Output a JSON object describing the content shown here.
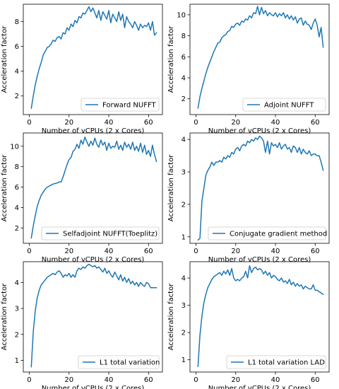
{
  "colors": {
    "line": "#1f77b4"
  },
  "chart_data": [
    {
      "type": "line",
      "xlabel": "Number of vCPUs (2 x Cores)",
      "ylabel": "Acceleration factor",
      "xlim": [
        -3,
        67
      ],
      "ylim": [
        0.5,
        9.4
      ],
      "xticks": [
        0,
        20,
        40,
        60
      ],
      "yticks": [
        2,
        4,
        6,
        8
      ],
      "legend_position": "bottom-right",
      "series": [
        {
          "name": "Forward NUFFT",
          "x": [
            1,
            2,
            3,
            4,
            5,
            6,
            7,
            8,
            9,
            10,
            11,
            12,
            13,
            14,
            15,
            16,
            17,
            18,
            19,
            20,
            21,
            22,
            23,
            24,
            25,
            26,
            27,
            28,
            29,
            30,
            31,
            32,
            33,
            34,
            35,
            36,
            37,
            38,
            39,
            40,
            41,
            42,
            43,
            44,
            45,
            46,
            47,
            48,
            49,
            50,
            51,
            52,
            53,
            54,
            55,
            56,
            57,
            58,
            59,
            60,
            61,
            62,
            63,
            64
          ],
          "values": [
            1.0,
            2.0,
            2.9,
            3.6,
            4.2,
            4.7,
            5.3,
            5.6,
            5.9,
            6.0,
            6.2,
            6.5,
            6.4,
            6.7,
            6.8,
            6.6,
            7.1,
            7.0,
            7.5,
            7.3,
            7.8,
            7.6,
            8.1,
            7.9,
            8.4,
            8.3,
            8.7,
            8.6,
            8.9,
            9.2,
            8.8,
            9.1,
            8.7,
            8.3,
            8.9,
            8.1,
            8.8,
            8.5,
            8.2,
            8.9,
            7.9,
            8.6,
            8.3,
            8.0,
            8.8,
            8.1,
            8.6,
            7.5,
            8.4,
            8.0,
            7.8,
            7.5,
            8.0,
            7.7,
            7.3,
            7.8,
            7.5,
            7.7,
            7.6,
            7.9,
            7.3,
            8.0,
            6.9,
            7.1
          ]
        }
      ]
    },
    {
      "type": "line",
      "xlabel": "Number of vCPUs (2 x Cores)",
      "ylabel": "Acceleration factor",
      "xlim": [
        -3,
        67
      ],
      "ylim": [
        0.5,
        11.0
      ],
      "xticks": [
        0,
        20,
        40,
        60
      ],
      "yticks": [
        2,
        4,
        6,
        8,
        10
      ],
      "legend_position": "bottom-right",
      "series": [
        {
          "name": "Adjoint NUFFT",
          "x": [
            1,
            2,
            3,
            4,
            5,
            6,
            7,
            8,
            9,
            10,
            11,
            12,
            13,
            14,
            15,
            16,
            17,
            18,
            19,
            20,
            21,
            22,
            23,
            24,
            25,
            26,
            27,
            28,
            29,
            30,
            31,
            32,
            33,
            34,
            35,
            36,
            37,
            38,
            39,
            40,
            41,
            42,
            43,
            44,
            45,
            46,
            47,
            48,
            49,
            50,
            51,
            52,
            53,
            54,
            55,
            56,
            57,
            58,
            59,
            60,
            61,
            62,
            63,
            64
          ],
          "values": [
            1.1,
            2.2,
            3.0,
            3.7,
            4.4,
            5.0,
            5.5,
            6.0,
            6.5,
            6.9,
            7.3,
            7.4,
            7.8,
            8.0,
            8.1,
            8.4,
            8.5,
            8.9,
            8.8,
            9.1,
            9.2,
            9.0,
            9.4,
            9.3,
            9.6,
            9.5,
            9.9,
            9.7,
            10.2,
            10.1,
            10.8,
            10.0,
            10.7,
            10.1,
            10.4,
            9.9,
            10.2,
            10.0,
            9.9,
            10.2,
            9.8,
            10.1,
            9.9,
            10.2,
            9.7,
            10.0,
            9.6,
            9.9,
            9.5,
            9.8,
            9.2,
            9.6,
            9.7,
            9.0,
            9.4,
            9.1,
            9.0,
            8.6,
            9.2,
            9.6,
            9.0,
            7.9,
            8.8,
            6.9
          ]
        }
      ]
    },
    {
      "type": "line",
      "xlabel": "Number of vCPUs (2 x Cores)",
      "ylabel": "Acceleration factor",
      "xlim": [
        -3,
        67
      ],
      "ylim": [
        0.5,
        11.3
      ],
      "xticks": [
        0,
        20,
        40,
        60
      ],
      "yticks": [
        2,
        4,
        6,
        8,
        10
      ],
      "legend_position": "bottom-right",
      "series": [
        {
          "name": "Selfadjoint NUFFT(Toeplitz)",
          "x": [
            1,
            2,
            3,
            4,
            5,
            6,
            7,
            8,
            9,
            10,
            11,
            12,
            13,
            14,
            15,
            16,
            17,
            18,
            19,
            20,
            21,
            22,
            23,
            24,
            25,
            26,
            27,
            28,
            29,
            30,
            31,
            32,
            33,
            34,
            35,
            36,
            37,
            38,
            39,
            40,
            41,
            42,
            43,
            44,
            45,
            46,
            47,
            48,
            49,
            50,
            51,
            52,
            53,
            54,
            55,
            56,
            57,
            58,
            59,
            60,
            61,
            62,
            63,
            64
          ],
          "values": [
            1.0,
            2.2,
            3.2,
            4.1,
            4.7,
            5.2,
            5.5,
            5.8,
            6.0,
            6.1,
            6.2,
            6.3,
            6.35,
            6.4,
            6.5,
            6.5,
            7.0,
            7.6,
            8.2,
            8.7,
            8.9,
            9.5,
            9.7,
            10.2,
            9.8,
            10.6,
            10.2,
            10.9,
            10.4,
            10.0,
            10.5,
            10.1,
            10.8,
            10.2,
            9.9,
            10.6,
            10.1,
            10.4,
            9.6,
            10.3,
            9.8,
            10.0,
            9.9,
            10.5,
            9.7,
            10.1,
            9.6,
            10.4,
            9.9,
            10.2,
            9.7,
            10.4,
            9.6,
            10.0,
            9.5,
            10.3,
            9.4,
            10.1,
            9.2,
            9.6,
            9.0,
            10.1,
            9.2,
            8.5
          ]
        }
      ]
    },
    {
      "type": "line",
      "xlabel": "Number of vCPUs (2 x Cores)",
      "ylabel": "Acceleration factor",
      "xlim": [
        -3,
        67
      ],
      "ylim": [
        0.8,
        4.2
      ],
      "xticks": [
        0,
        20,
        40,
        60
      ],
      "yticks": [
        1,
        2,
        3,
        4
      ],
      "legend_position": "bottom-right",
      "series": [
        {
          "name": "Conjugate gradient method",
          "x": [
            1,
            2,
            3,
            4,
            5,
            6,
            7,
            8,
            9,
            10,
            11,
            12,
            13,
            14,
            15,
            16,
            17,
            18,
            19,
            20,
            21,
            22,
            23,
            24,
            25,
            26,
            27,
            28,
            29,
            30,
            31,
            32,
            33,
            34,
            35,
            36,
            37,
            38,
            39,
            40,
            41,
            42,
            43,
            44,
            45,
            46,
            47,
            48,
            49,
            50,
            51,
            52,
            53,
            54,
            55,
            56,
            57,
            58,
            59,
            60,
            61,
            62,
            63,
            64
          ],
          "values": [
            0.9,
            0.95,
            2.1,
            2.5,
            2.9,
            3.05,
            3.15,
            3.3,
            3.2,
            3.3,
            3.3,
            3.35,
            3.3,
            3.45,
            3.4,
            3.5,
            3.45,
            3.6,
            3.55,
            3.7,
            3.75,
            3.65,
            3.8,
            3.85,
            3.8,
            3.95,
            3.9,
            4.0,
            3.95,
            4.05,
            4.0,
            4.1,
            4.05,
            3.95,
            3.6,
            3.95,
            3.55,
            3.9,
            3.8,
            3.85,
            3.75,
            3.9,
            3.7,
            3.8,
            3.85,
            3.7,
            3.75,
            3.6,
            3.8,
            3.75,
            3.6,
            3.75,
            3.55,
            3.7,
            3.6,
            3.55,
            3.65,
            3.5,
            3.55,
            3.55,
            3.5,
            3.5,
            3.3,
            3.05
          ]
        }
      ]
    },
    {
      "type": "line",
      "xlabel": "Number of vCPUs (2 x Cores)",
      "ylabel": "Acceleration factor",
      "xlim": [
        -3,
        67
      ],
      "ylim": [
        0.55,
        4.8
      ],
      "xticks": [
        0,
        20,
        40,
        60
      ],
      "yticks": [
        1,
        2,
        3,
        4
      ],
      "legend_position": "bottom-right",
      "series": [
        {
          "name": "L1 total variation",
          "x": [
            1,
            2,
            3,
            4,
            5,
            6,
            7,
            8,
            9,
            10,
            11,
            12,
            13,
            14,
            15,
            16,
            17,
            18,
            19,
            20,
            21,
            22,
            23,
            24,
            25,
            26,
            27,
            28,
            29,
            30,
            31,
            32,
            33,
            34,
            35,
            36,
            37,
            38,
            39,
            40,
            41,
            42,
            43,
            44,
            45,
            46,
            47,
            48,
            49,
            50,
            51,
            52,
            53,
            54,
            55,
            56,
            57,
            58,
            59,
            60,
            61,
            62,
            63,
            64
          ],
          "values": [
            0.75,
            2.1,
            2.9,
            3.4,
            3.7,
            3.9,
            4.0,
            4.1,
            4.2,
            4.25,
            4.3,
            4.35,
            4.3,
            4.4,
            4.45,
            4.35,
            4.2,
            4.3,
            4.25,
            4.35,
            4.2,
            4.3,
            4.2,
            4.45,
            4.55,
            4.5,
            4.6,
            4.55,
            4.65,
            4.7,
            4.65,
            4.6,
            4.65,
            4.55,
            4.6,
            4.5,
            4.4,
            4.55,
            4.35,
            4.45,
            4.3,
            4.2,
            4.4,
            4.25,
            4.1,
            4.3,
            4.05,
            4.2,
            4.0,
            4.15,
            3.95,
            4.05,
            3.9,
            4.0,
            3.85,
            4.0,
            3.9,
            3.85,
            4.0,
            3.95,
            3.8,
            3.8,
            3.8,
            3.8
          ]
        }
      ]
    },
    {
      "type": "line",
      "xlabel": "Number of vCPUs (2 x Cores)",
      "ylabel": "Acceleration factor",
      "xlim": [
        -3,
        67
      ],
      "ylim": [
        0.55,
        4.6
      ],
      "xticks": [
        0,
        20,
        40,
        60
      ],
      "yticks": [
        1,
        2,
        3,
        4
      ],
      "legend_position": "bottom-right",
      "series": [
        {
          "name": "L1 total variation LAD",
          "x": [
            1,
            2,
            3,
            4,
            5,
            6,
            7,
            8,
            9,
            10,
            11,
            12,
            13,
            14,
            15,
            16,
            17,
            18,
            19,
            20,
            21,
            22,
            23,
            24,
            25,
            26,
            27,
            28,
            29,
            30,
            31,
            32,
            33,
            34,
            35,
            36,
            37,
            38,
            39,
            40,
            41,
            42,
            43,
            44,
            45,
            46,
            47,
            48,
            49,
            50,
            51,
            52,
            53,
            54,
            55,
            56,
            57,
            58,
            59,
            60,
            61,
            62,
            63,
            64
          ],
          "values": [
            0.75,
            1.9,
            2.6,
            3.1,
            3.4,
            3.65,
            3.8,
            3.95,
            4.05,
            4.1,
            4.15,
            4.2,
            4.1,
            4.25,
            4.15,
            4.3,
            4.1,
            4.35,
            4.0,
            3.9,
            3.95,
            3.9,
            4.0,
            4.05,
            4.25,
            4.0,
            4.45,
            4.2,
            4.35,
            4.4,
            4.3,
            4.35,
            4.3,
            4.15,
            4.25,
            4.1,
            4.2,
            4.0,
            4.1,
            4.05,
            3.95,
            3.9,
            4.0,
            3.85,
            3.9,
            3.8,
            3.95,
            3.75,
            3.85,
            3.7,
            3.8,
            3.7,
            3.75,
            3.6,
            3.7,
            3.65,
            3.6,
            3.6,
            3.75,
            3.55,
            3.55,
            3.5,
            3.45,
            3.4
          ]
        }
      ]
    }
  ]
}
